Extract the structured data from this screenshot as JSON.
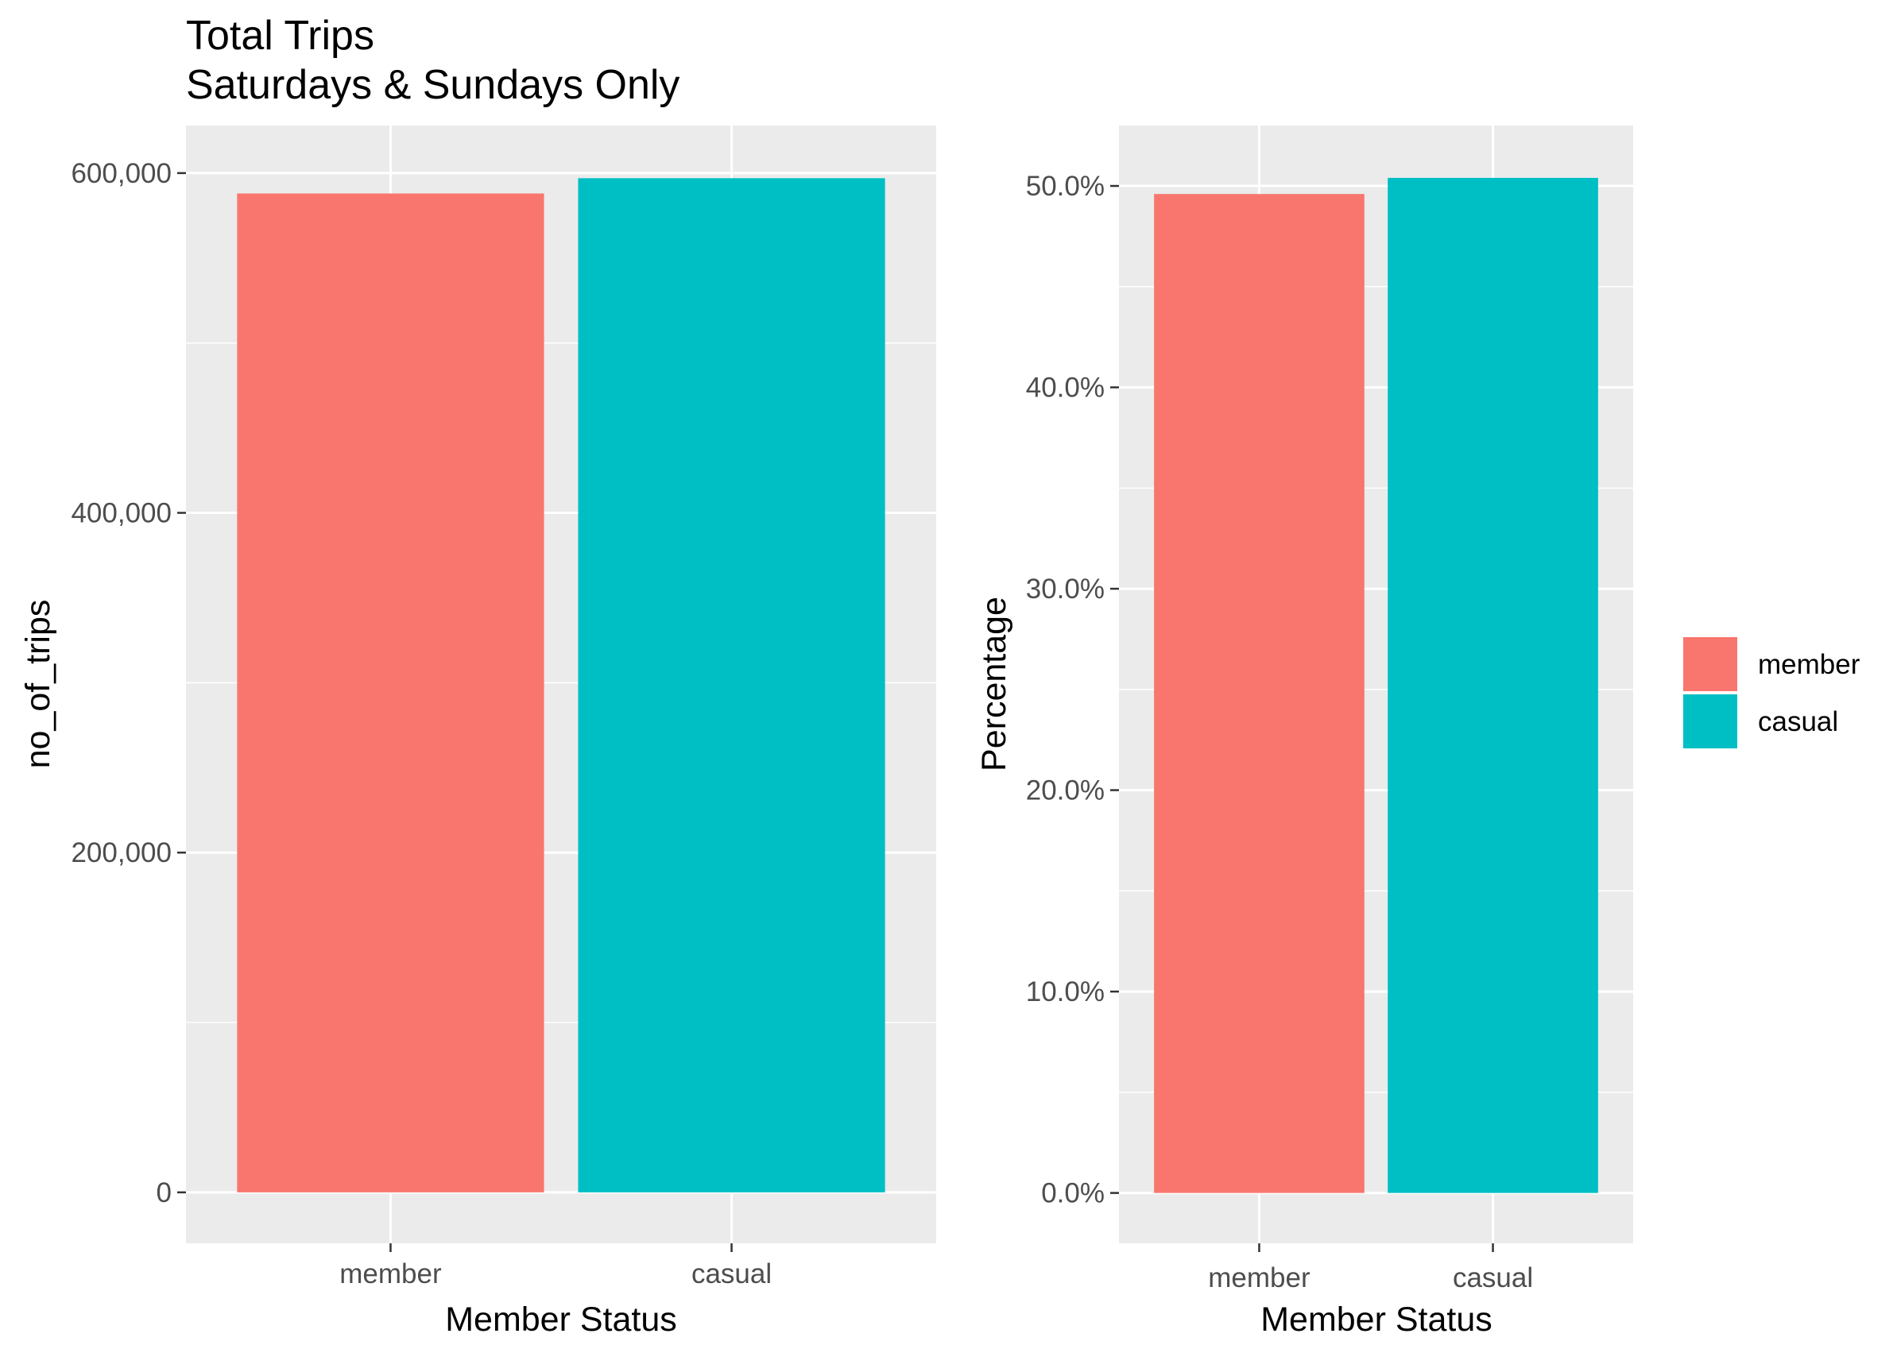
{
  "title_line1": "Total Trips",
  "title_line2": "Saturdays & Sundays Only",
  "colors": {
    "panel_bg": "#EBEBEB",
    "grid": "#FFFFFF",
    "tick_text": "#4D4D4D",
    "tick_mark": "#333333",
    "member": "#F8766D",
    "casual": "#00BFC4"
  },
  "legend": {
    "items": [
      {
        "label": "member",
        "color": "#F8766D"
      },
      {
        "label": "casual",
        "color": "#00BFC4"
      }
    ]
  },
  "chart_data": [
    {
      "type": "bar",
      "categories": [
        "member",
        "casual"
      ],
      "values": [
        588000,
        597000
      ],
      "xlabel": "Member Status",
      "ylabel": "no_of_trips",
      "ylim": [
        -30000,
        628000
      ],
      "yticks": [
        0,
        200000,
        400000,
        600000
      ],
      "ytick_labels": [
        "0",
        "200,000",
        "400,000",
        "600,000"
      ],
      "grid": true
    },
    {
      "type": "bar",
      "categories": [
        "member",
        "casual"
      ],
      "values": [
        49.6,
        50.4
      ],
      "xlabel": "Member Status",
      "ylabel": "Percentage",
      "ylim": [
        -2.5,
        53.0
      ],
      "yticks": [
        0,
        10,
        20,
        30,
        40,
        50
      ],
      "ytick_labels": [
        "0.0%",
        "10.0%",
        "20.0%",
        "30.0%",
        "40.0%",
        "50.0%"
      ],
      "grid": true,
      "legend_position": "right"
    }
  ]
}
